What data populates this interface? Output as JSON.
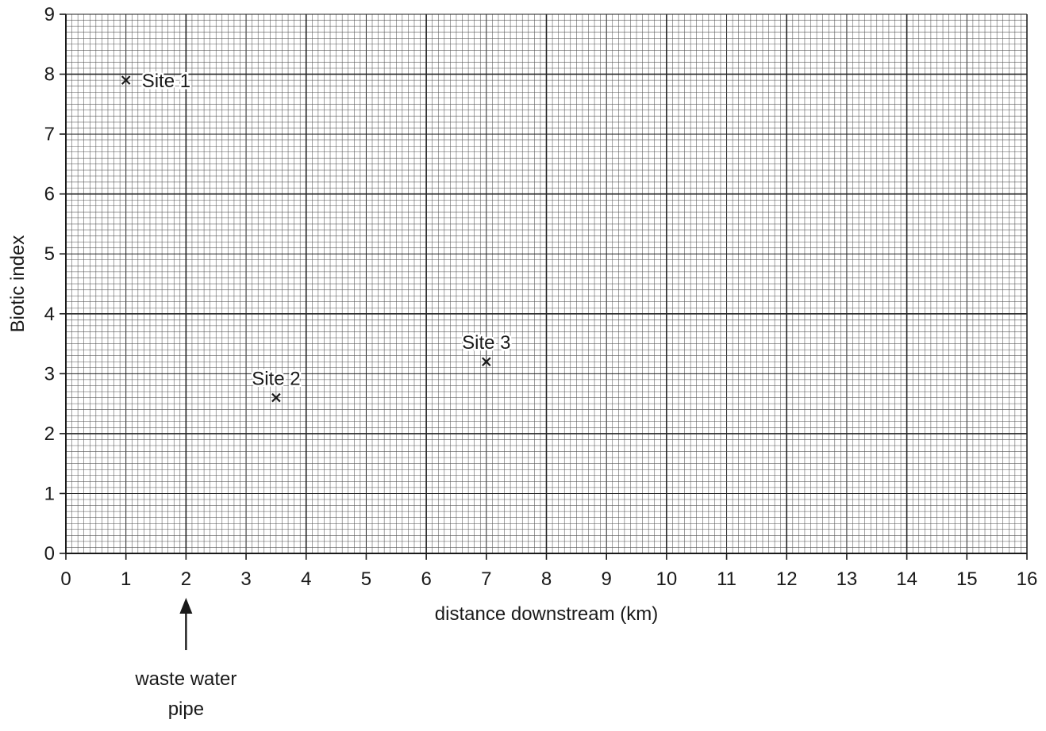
{
  "chart_data": {
    "type": "scatter",
    "title": "",
    "xlabel": "distance downstream (km)",
    "ylabel": "Biotic index",
    "xlim": [
      0,
      16
    ],
    "ylim": [
      0,
      9
    ],
    "x_ticks": [
      0,
      1,
      2,
      3,
      4,
      5,
      6,
      7,
      8,
      9,
      10,
      11,
      12,
      13,
      14,
      15,
      16
    ],
    "y_ticks": [
      0,
      1,
      2,
      3,
      4,
      5,
      6,
      7,
      8,
      9
    ],
    "grid": "graph paper (10 minor divisions per major unit)",
    "marker": "cross",
    "points": [
      {
        "label": "Site 1",
        "x": 1,
        "y": 7.9,
        "label_side": "right"
      },
      {
        "label": "Site 2",
        "x": 3.5,
        "y": 2.6,
        "label_side": "above"
      },
      {
        "label": "Site 3",
        "x": 7,
        "y": 3.2,
        "label_side": "above"
      }
    ],
    "annotation": {
      "x": 2,
      "lines": [
        "waste water",
        "pipe"
      ]
    }
  },
  "colors": {
    "ink": "#1a1a1a",
    "grid_minor": "#555555",
    "grid_major": "#222222",
    "background": "#ffffff"
  }
}
